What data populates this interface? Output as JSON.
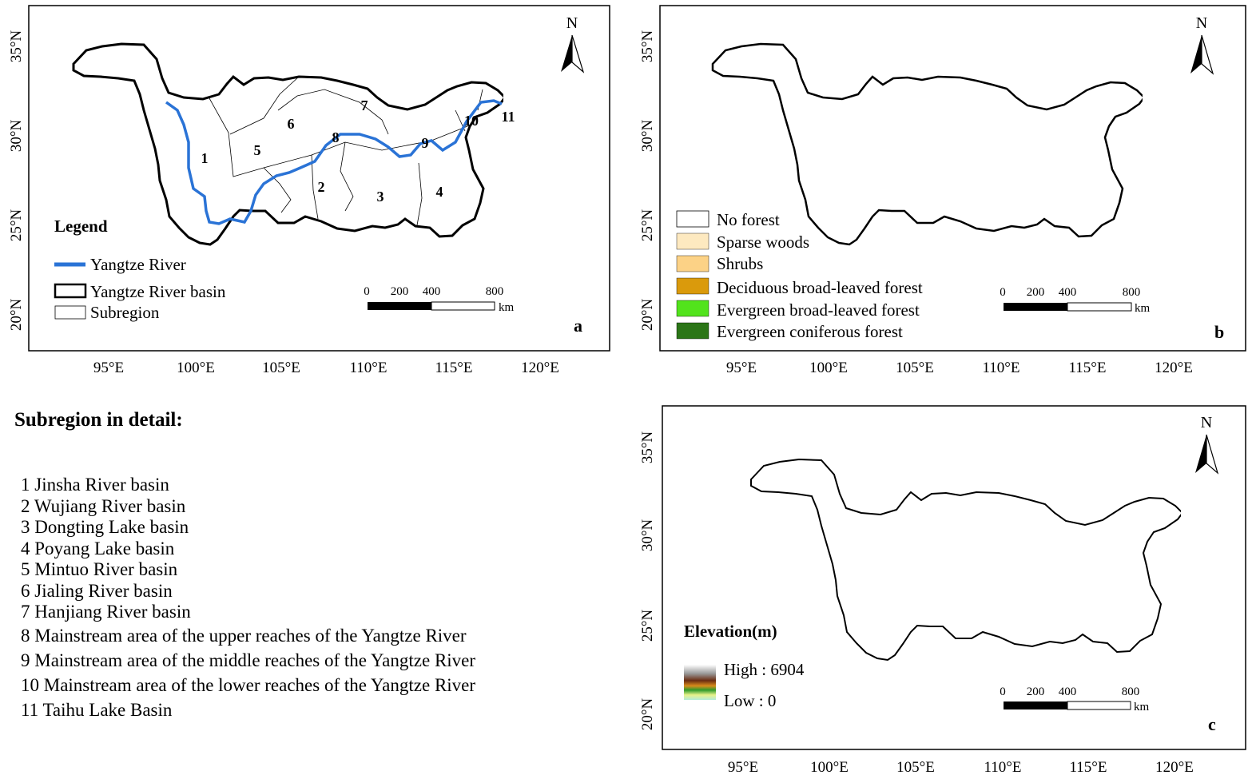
{
  "panels": {
    "a": {
      "letter": "a",
      "north": "N",
      "lat_ticks": [
        "35°N",
        "30°N",
        "25°N",
        "20°N"
      ],
      "lon_ticks": [
        "95°E",
        "100°E",
        "105°E",
        "110°E",
        "115°E",
        "120°E"
      ],
      "legend_title": "Legend",
      "legend_items": [
        "Yangtze River",
        "Yangtze River basin",
        "Subregion"
      ],
      "scale_labels": [
        "0",
        "200",
        "400",
        "800"
      ],
      "scale_unit": "km",
      "subregion_labels": [
        "1",
        "2",
        "3",
        "4",
        "5",
        "6",
        "7",
        "8",
        "9",
        "10",
        "11"
      ],
      "colors": {
        "river": "#2a73d6",
        "basin_outline": "#000000"
      }
    },
    "b": {
      "letter": "b",
      "north": "N",
      "lat_ticks": [
        "35°N",
        "30°N",
        "25°N",
        "20°N"
      ],
      "lon_ticks": [
        "95°E",
        "100°E",
        "105°E",
        "110°E",
        "115°E",
        "120°E"
      ],
      "legend_items": [
        {
          "label": "No forest",
          "color": "#ffffff"
        },
        {
          "label": "Sparse woods",
          "color": "#fde9c0"
        },
        {
          "label": "Shrubs",
          "color": "#fcd286"
        },
        {
          "label": "Deciduous broad-leaved forest",
          "color": "#da9a0c"
        },
        {
          "label": "Evergreen broad-leaved forest",
          "color": "#52e31c"
        },
        {
          "label": "Evergreen coniferous forest",
          "color": "#2b7517"
        }
      ],
      "scale_labels": [
        "0",
        "200",
        "400",
        "800"
      ],
      "scale_unit": "km"
    },
    "c": {
      "letter": "c",
      "north": "N",
      "lat_ticks": [
        "35°N",
        "30°N",
        "25°N",
        "20°N"
      ],
      "lon_ticks": [
        "95°E",
        "100°E",
        "105°E",
        "110°E",
        "115°E",
        "120°E"
      ],
      "legend_title": "Elevation(m)",
      "legend_high": "High : 6904",
      "legend_low": "Low : 0",
      "scale_labels": [
        "0",
        "200",
        "400",
        "800"
      ],
      "scale_unit": "km",
      "ramp_colors": [
        "#ffffff",
        "#a8a8a8",
        "#6b2d12",
        "#b9461a",
        "#e0a020",
        "#3aa22a",
        "#e9f28a",
        "#b4ecd8"
      ]
    }
  },
  "detail": {
    "title": "Subregion in detail:",
    "items": [
      "1  Jinsha River basin",
      "2  Wujiang River basin",
      "3  Dongting Lake basin",
      "4  Poyang Lake basin",
      "5  Mintuo River basin",
      "6  Jialing River basin",
      "7  Hanjiang River basin",
      "8  Mainstream area of the upper reaches of the Yangtze River",
      "9  Mainstream area of the middle reaches of the Yangtze River",
      "10 Mainstream area of the lower reaches of the Yangtze River",
      "11 Taihu Lake Basin"
    ]
  }
}
